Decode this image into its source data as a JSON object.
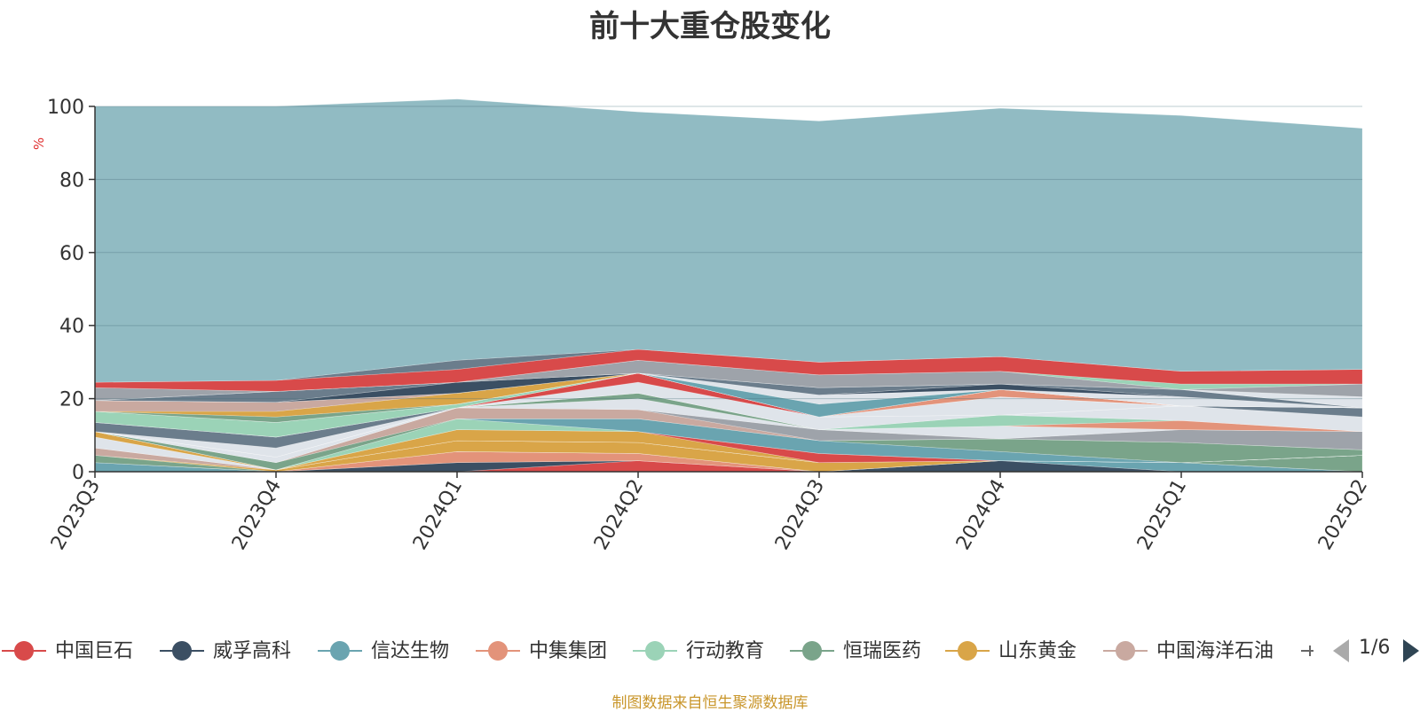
{
  "title": "前十大重仓股变化",
  "footer": "制图数据来自恒生聚源数据库",
  "legend_page": "1/6",
  "colors": {
    "background": "#ffffff",
    "top_area": "#91bbc3",
    "footer_text": "#c9962b",
    "unit_label": "#e03030"
  },
  "chart_data": {
    "type": "area",
    "stacked": true,
    "title": "前十大重仓股变化",
    "xlabel": "",
    "ylabel": "%",
    "categories": [
      "2023Q3",
      "2023Q4",
      "2024Q1",
      "2024Q2",
      "2024Q3",
      "2024Q4",
      "2025Q1",
      "2025Q2"
    ],
    "ylim": [
      0,
      100
    ],
    "yticks": [
      0,
      20,
      40,
      60,
      80,
      100
    ],
    "grid": true,
    "legend_position": "bottom",
    "series": [
      {
        "name": "中国巨石",
        "color": "#d84a4a",
        "values": [
          0,
          0,
          0,
          3.0,
          0,
          0,
          0,
          0
        ]
      },
      {
        "name": "威孚高科",
        "color": "#3b4f63",
        "values": [
          0,
          0,
          2.5,
          0,
          0,
          3.0,
          0,
          0
        ]
      },
      {
        "name": "信达生物",
        "color": "#6aa4b0",
        "values": [
          2.5,
          0,
          0,
          0,
          0,
          0,
          2.5,
          0
        ]
      },
      {
        "name": "中集集团",
        "color": "#e3937a",
        "values": [
          0,
          0,
          3.0,
          2.0,
          0,
          0,
          0,
          0
        ]
      },
      {
        "name": "行动教育",
        "color": "#9bd3b7",
        "values": [
          0,
          0,
          0,
          0,
          0,
          0,
          0,
          0
        ]
      },
      {
        "name": "恒瑞医药",
        "color": "#7aa48a",
        "values": [
          2.0,
          0,
          0,
          0,
          0,
          0,
          0,
          4.5
        ]
      },
      {
        "name": "山东黄金",
        "color": "#d9a548",
        "values": [
          0,
          0.5,
          3.0,
          3.0,
          2.5,
          0,
          0,
          0
        ]
      },
      {
        "name": "中国海洋石油",
        "color": "#c9a9a0",
        "values": [
          2.0,
          0,
          0,
          0,
          0,
          0,
          0,
          0
        ]
      },
      {
        "name": "",
        "color": "#a8c4d4",
        "values": [
          0,
          0,
          0,
          0,
          0,
          0,
          0,
          0
        ]
      },
      {
        "name": "",
        "color": "#dfe4ea",
        "values": [
          3.0,
          0,
          0,
          0,
          0,
          0,
          0,
          0
        ]
      },
      {
        "name": "",
        "color": "#d9a548",
        "values": [
          1.5,
          0,
          3.0,
          3.0,
          0,
          0,
          0,
          0
        ]
      },
      {
        "name": "",
        "color": "#d84a4a",
        "values": [
          0,
          0,
          0,
          0,
          2.5,
          0,
          0,
          0
        ]
      },
      {
        "name": "",
        "color": "#9bd3b7",
        "values": [
          0,
          0,
          3.0,
          0,
          0,
          0,
          0,
          0
        ]
      },
      {
        "name": "",
        "color": "#6aa4b0",
        "values": [
          0,
          0,
          0,
          3.5,
          3.5,
          2.5,
          0,
          0
        ]
      },
      {
        "name": "",
        "color": "#7aa48a",
        "values": [
          0,
          2.0,
          0,
          0,
          0,
          3.5,
          5.5,
          1.5
        ]
      },
      {
        "name": "",
        "color": "#c9a9a0",
        "values": [
          0,
          0,
          3.0,
          2.5,
          0,
          0,
          0,
          0
        ]
      },
      {
        "name": "",
        "color": "#9ea3aa",
        "values": [
          0,
          0,
          0,
          0,
          3.0,
          0,
          3.5,
          5.0
        ]
      },
      {
        "name": "",
        "color": "#dfe4ea",
        "values": [
          0,
          1.5,
          0,
          3.0,
          0,
          3.5,
          0,
          0
        ]
      },
      {
        "name": "",
        "color": "#7aa48a",
        "values": [
          0,
          0,
          0,
          1.5,
          0,
          0,
          0,
          0
        ]
      },
      {
        "name": "",
        "color": "#e3937a",
        "values": [
          0,
          0,
          0,
          0,
          0,
          0,
          2.5,
          0
        ]
      },
      {
        "name": "",
        "color": "#9bd3b7",
        "values": [
          0,
          0,
          0,
          0,
          0,
          3.0,
          0,
          0
        ]
      },
      {
        "name": "",
        "color": "#dfe4ea",
        "values": [
          0,
          2.5,
          0,
          3.0,
          3.5,
          0,
          4.0,
          4.0
        ]
      },
      {
        "name": "",
        "color": "#6b7d8c",
        "values": [
          2.5,
          3.0,
          0,
          0,
          0,
          0,
          0,
          2.5
        ]
      },
      {
        "name": "",
        "color": "#d84a4a",
        "values": [
          0,
          0,
          0,
          2.5,
          0,
          0,
          0,
          0
        ]
      },
      {
        "name": "",
        "color": "#dfe4ea",
        "values": [
          0,
          0,
          0,
          0,
          0,
          5.0,
          0,
          0
        ]
      },
      {
        "name": "",
        "color": "#7aa48a",
        "values": [
          0,
          0,
          0,
          0,
          0,
          0,
          0,
          0
        ]
      },
      {
        "name": "",
        "color": "#9bd3b7",
        "values": [
          3.0,
          4.0,
          1.0,
          0,
          0,
          0,
          0,
          0
        ]
      },
      {
        "name": "",
        "color": "#e3937a",
        "values": [
          0,
          0,
          0,
          0,
          0,
          2.0,
          0,
          0
        ]
      },
      {
        "name": "",
        "color": "#9ea3aa",
        "values": [
          0,
          0,
          0,
          0,
          0,
          0,
          0,
          0
        ]
      },
      {
        "name": "",
        "color": "#7aa48a",
        "values": [
          0,
          1.5,
          0,
          0,
          0,
          0,
          0,
          0
        ]
      },
      {
        "name": "",
        "color": "#d9a548",
        "values": [
          0,
          1.5,
          3.0,
          0,
          0,
          0,
          0,
          0
        ]
      },
      {
        "name": "",
        "color": "#c9a9a0",
        "values": [
          3.0,
          2.5,
          0,
          0,
          0,
          0,
          0,
          0
        ]
      },
      {
        "name": "",
        "color": "#6aa4b0",
        "values": [
          0,
          0,
          0,
          0,
          3.5,
          0,
          0,
          0
        ]
      },
      {
        "name": "",
        "color": "#dfe4ea",
        "values": [
          0,
          0,
          0,
          0,
          2.5,
          0,
          2.5,
          0
        ]
      },
      {
        "name": "",
        "color": "#3b4f63",
        "values": [
          0,
          0,
          3.0,
          0,
          0,
          1.5,
          0,
          0
        ]
      },
      {
        "name": "",
        "color": "#6b7d8c",
        "values": [
          0,
          3.0,
          0,
          0,
          2.0,
          0,
          2.0,
          0
        ]
      },
      {
        "name": "",
        "color": "#e3937a",
        "values": [
          0,
          0,
          0,
          0,
          0,
          0,
          0,
          0
        ]
      },
      {
        "name": "",
        "color": "#dfe4ea",
        "values": [
          0,
          0,
          0,
          0,
          0,
          0,
          0,
          3.0
        ]
      },
      {
        "name": "",
        "color": "#9ea3aa",
        "values": [
          3.5,
          0,
          0,
          3.5,
          3.5,
          3.5,
          0,
          3.5
        ]
      },
      {
        "name": "",
        "color": "#9bd3b7",
        "values": [
          0,
          0,
          0,
          0,
          0,
          0,
          1.5,
          0
        ]
      },
      {
        "name": "",
        "color": "#d84a4a",
        "values": [
          1.5,
          3.0,
          3.5,
          3.0,
          3.5,
          4.0,
          3.5,
          4.0
        ]
      },
      {
        "name": "",
        "color": "#6b7d8c",
        "values": [
          0,
          0,
          2.5,
          0,
          0,
          0,
          0,
          0
        ]
      },
      {
        "name": "",
        "color": "#91bbc3",
        "values": [
          75.5,
          75.0,
          71.5,
          65.0,
          66.0,
          68.0,
          70.0,
          66.0
        ]
      }
    ]
  }
}
